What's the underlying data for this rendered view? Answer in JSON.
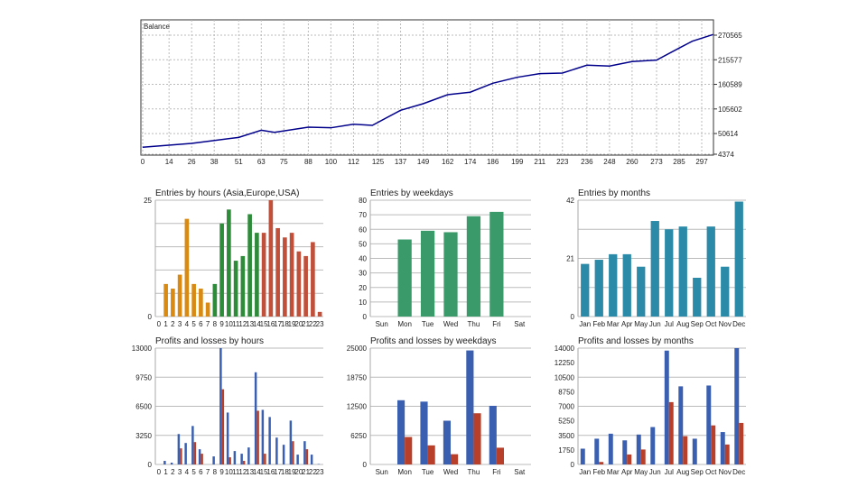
{
  "chart_data": [
    {
      "type": "line",
      "title": "Balance",
      "y_ticks": [
        "270565",
        "215577",
        "160589",
        "105602",
        "50614",
        "4374"
      ],
      "ylim": [
        4374,
        270565
      ],
      "x_ticks": [
        "0",
        "14",
        "26",
        "38",
        "51",
        "63",
        "75",
        "88",
        "100",
        "112",
        "125",
        "137",
        "149",
        "162",
        "174",
        "186",
        "199",
        "211",
        "223",
        "236",
        "248",
        "260",
        "273",
        "285",
        "297"
      ],
      "xlim": [
        0,
        303
      ],
      "grid": true,
      "color": "#00008b",
      "x": [
        0,
        26,
        51,
        63,
        70,
        88,
        100,
        112,
        122,
        137,
        149,
        162,
        174,
        186,
        199,
        211,
        223,
        236,
        248,
        260,
        273,
        285,
        292,
        303
      ],
      "y": [
        20000,
        28600,
        42000,
        58000,
        53400,
        64900,
        63500,
        71500,
        68900,
        102600,
        117300,
        137500,
        143000,
        163100,
        176400,
        184500,
        185900,
        203400,
        201400,
        211500,
        214800,
        241700,
        257100,
        272000
      ]
    },
    {
      "type": "bar",
      "title": "Entries by hours (Asia,Europe,USA)",
      "ylim": [
        0,
        25
      ],
      "y_ticks": [
        "0",
        "25"
      ],
      "grid": true,
      "categories": [
        "0",
        "1",
        "2",
        "3",
        "4",
        "5",
        "6",
        "7",
        "8",
        "9",
        "10",
        "11",
        "12",
        "13",
        "14",
        "15",
        "16",
        "17",
        "18",
        "19",
        "20",
        "21",
        "22",
        "23"
      ],
      "values": [
        0,
        7,
        6,
        9,
        21,
        7,
        6,
        3,
        7,
        20,
        23,
        12,
        13,
        22,
        18,
        18,
        25,
        19,
        17,
        18,
        14,
        13,
        16,
        1
      ],
      "colors": [
        "#d98a12",
        "#d98a12",
        "#d98a12",
        "#d98a12",
        "#d98a12",
        "#d98a12",
        "#d98a12",
        "#d98a12",
        "#2e8b3a",
        "#2e8b3a",
        "#2e8b3a",
        "#2e8b3a",
        "#2e8b3a",
        "#2e8b3a",
        "#2e8b3a",
        "#c0503a",
        "#c0503a",
        "#c0503a",
        "#c0503a",
        "#c0503a",
        "#c0503a",
        "#c0503a",
        "#c0503a",
        "#c0503a"
      ]
    },
    {
      "type": "bar",
      "title": "Entries by weekdays",
      "ylim": [
        0,
        80
      ],
      "y_ticks": [
        "0",
        "10",
        "20",
        "30",
        "40",
        "50",
        "60",
        "70",
        "80"
      ],
      "grid": true,
      "categories": [
        "Sun",
        "Mon",
        "Tue",
        "Wed",
        "Thu",
        "Fri",
        "Sat"
      ],
      "values": [
        0,
        53,
        59,
        58,
        69,
        72,
        0
      ],
      "colors": [
        "#3a9a6a"
      ]
    },
    {
      "type": "bar",
      "title": "Entries by months",
      "ylim": [
        0,
        42
      ],
      "y_ticks": [
        "0",
        "21",
        "42"
      ],
      "grid": true,
      "categories": [
        "Jan",
        "Feb",
        "Mar",
        "Apr",
        "May",
        "Jun",
        "Jul",
        "Aug",
        "Sep",
        "Oct",
        "Nov",
        "Dec"
      ],
      "values": [
        19,
        20.5,
        22.5,
        22.5,
        18,
        34.5,
        31.5,
        32.5,
        14,
        32.5,
        18,
        41.5
      ],
      "colors": [
        "#2a8aa8"
      ]
    },
    {
      "type": "bar",
      "title": "Profits and losses by hours",
      "ylim": [
        0,
        13000
      ],
      "y_ticks": [
        "0",
        "3250",
        "6500",
        "9750",
        "13000"
      ],
      "grid": true,
      "categories": [
        "0",
        "1",
        "2",
        "3",
        "4",
        "5",
        "6",
        "7",
        "8",
        "9",
        "10",
        "11",
        "12",
        "13",
        "14",
        "15",
        "16",
        "17",
        "18",
        "19",
        "20",
        "21",
        "22",
        "23"
      ],
      "series": [
        {
          "values": [
            0,
            400,
            200,
            3400,
            2400,
            4300,
            1700,
            0,
            900,
            13000,
            5800,
            1500,
            1200,
            1900,
            10300,
            6100,
            5300,
            3000,
            2200,
            4900,
            1100,
            2600,
            1100,
            50
          ],
          "color": "#3a5fb0"
        },
        {
          "values": [
            0,
            0,
            0,
            1800,
            0,
            2500,
            1200,
            0,
            0,
            8400,
            800,
            0,
            400,
            0,
            6000,
            1200,
            0,
            0,
            0,
            2600,
            0,
            1700,
            0,
            0
          ],
          "color": "#b8402a"
        }
      ]
    },
    {
      "type": "bar",
      "title": "Profits and losses by weekdays",
      "ylim": [
        0,
        25000
      ],
      "y_ticks": [
        "0",
        "6250",
        "12500",
        "18750",
        "25000"
      ],
      "grid": true,
      "categories": [
        "Sun",
        "Mon",
        "Tue",
        "Wed",
        "Thu",
        "Fri",
        "Sat"
      ],
      "series": [
        {
          "values": [
            0,
            13800,
            13500,
            9400,
            24500,
            12600,
            0
          ],
          "color": "#3a5fb0"
        },
        {
          "values": [
            0,
            5900,
            4100,
            2200,
            11000,
            3600,
            0
          ],
          "color": "#b8402a"
        }
      ]
    },
    {
      "type": "bar",
      "title": "Profits and losses by months",
      "ylim": [
        0,
        14000
      ],
      "y_ticks": [
        "0",
        "1750",
        "3500",
        "5250",
        "7000",
        "8750",
        "10500",
        "12250",
        "14000"
      ],
      "grid": true,
      "categories": [
        "Jan",
        "Feb",
        "Mar",
        "Apr",
        "May",
        "Jun",
        "Jul",
        "Aug",
        "Sep",
        "Oct",
        "Nov",
        "Dec"
      ],
      "series": [
        {
          "values": [
            1900,
            3100,
            3700,
            2900,
            3600,
            4500,
            13700,
            9400,
            3100,
            9500,
            3900,
            14000
          ],
          "color": "#3a5fb0"
        },
        {
          "values": [
            0,
            300,
            0,
            1200,
            1800,
            0,
            7500,
            3400,
            0,
            4700,
            2400,
            5000
          ],
          "color": "#b8402a"
        }
      ]
    }
  ]
}
